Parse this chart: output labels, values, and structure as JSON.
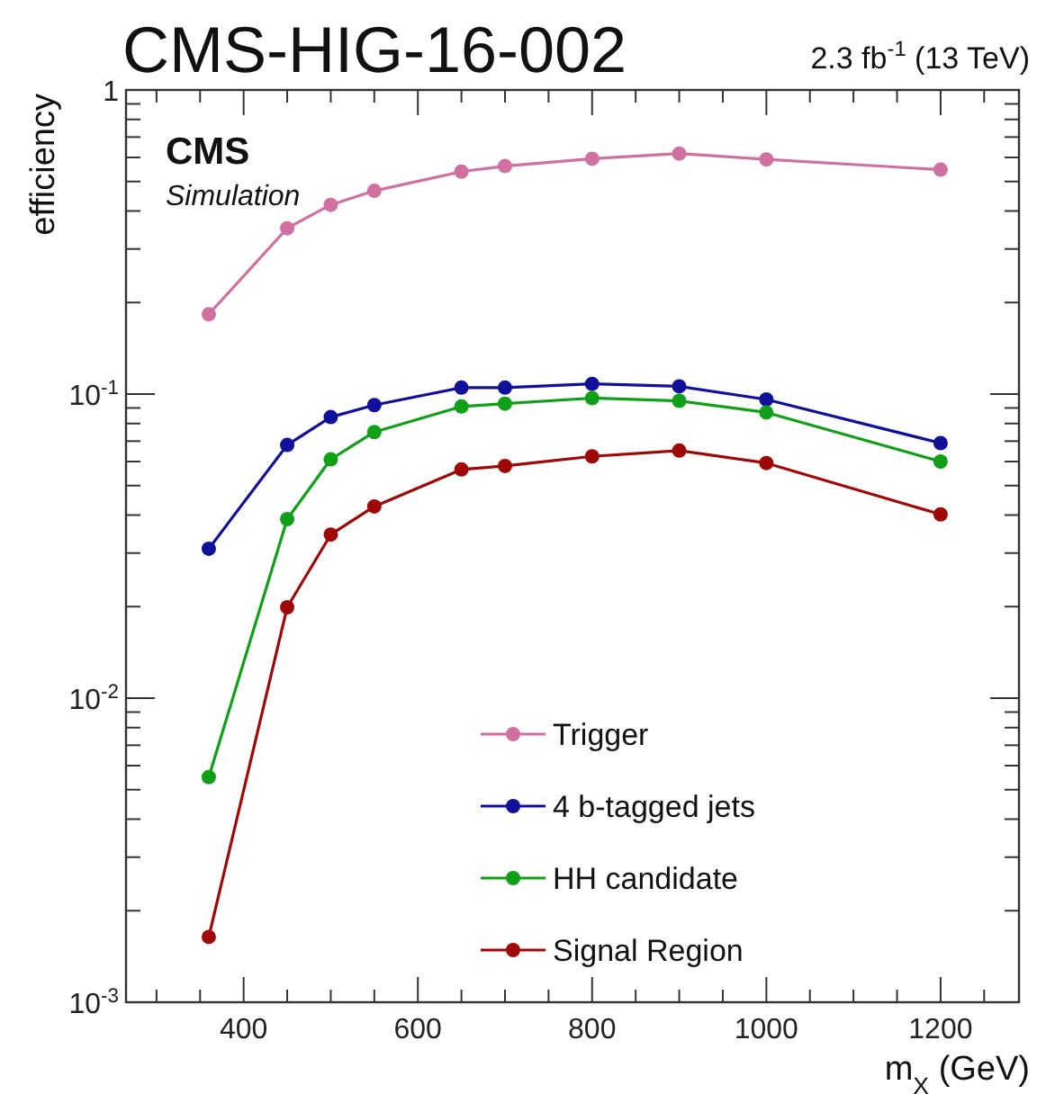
{
  "chart_data": {
    "type": "line",
    "title": "CMS-HIG-16-002",
    "subtitle": "2.3 fb$^{-1}$ (13 TeV)",
    "xlabel": "m$_{X}$ (GeV)",
    "ylabel": "efficiency",
    "annotations": [
      "CMS",
      "Simulation"
    ],
    "x": [
      360,
      450,
      500,
      550,
      650,
      700,
      800,
      900,
      1000,
      1200
    ],
    "series": [
      {
        "name": "Trigger",
        "color": "#d070a0",
        "values": [
          0.183,
          0.351,
          0.419,
          0.466,
          0.539,
          0.562,
          0.594,
          0.618,
          0.591,
          0.547
        ]
      },
      {
        "name": "4 b-tagged jets",
        "color": "#10109a",
        "values": [
          0.031,
          0.068,
          0.084,
          0.092,
          0.105,
          0.105,
          0.108,
          0.106,
          0.096,
          0.069
        ]
      },
      {
        "name": "HH candidate",
        "color": "#10a018",
        "values": [
          0.0055,
          0.0388,
          0.061,
          0.075,
          0.091,
          0.093,
          0.097,
          0.095,
          0.087,
          0.06
        ]
      },
      {
        "name": "Signal Region",
        "color": "#a00808",
        "values": [
          0.00164,
          0.0199,
          0.0345,
          0.0427,
          0.0565,
          0.058,
          0.0624,
          0.0652,
          0.0593,
          0.0402
        ]
      }
    ],
    "xlim": [
      265,
      1290
    ],
    "xticks": [
      {
        "value": 300,
        "label": null
      },
      {
        "value": 350,
        "label": null
      },
      400,
      {
        "value": 450,
        "label": null
      },
      {
        "value": 500,
        "label": null
      },
      {
        "value": 550,
        "label": null
      },
      600,
      {
        "value": 650,
        "label": null
      },
      {
        "value": 700,
        "label": null
      },
      {
        "value": 750,
        "label": null
      },
      800,
      {
        "value": 850,
        "label": null
      },
      {
        "value": 900,
        "label": null
      },
      {
        "value": 950,
        "label": null
      },
      1000,
      {
        "value": 1050,
        "label": null
      },
      {
        "value": 1100,
        "label": null
      },
      {
        "value": 1150,
        "label": null
      },
      1200,
      {
        "value": 1250,
        "label": null
      }
    ],
    "ylim": [
      0.001,
      1
    ],
    "yticks": [
      {
        "value": 0.001,
        "label": "10$^{-3}$"
      },
      {
        "value": 0.002,
        "label": null
      },
      {
        "value": 0.003,
        "label": null
      },
      {
        "value": 0.004,
        "label": null
      },
      {
        "value": 0.005,
        "label": null
      },
      {
        "value": 0.006,
        "label": null
      },
      {
        "value": 0.007,
        "label": null
      },
      {
        "value": 0.008,
        "label": null
      },
      {
        "value": 0.009,
        "label": null
      },
      {
        "value": 0.01,
        "label": "10$^{-2}$"
      },
      {
        "value": 0.02,
        "label": null
      },
      {
        "value": 0.03,
        "label": null
      },
      {
        "value": 0.04,
        "label": null
      },
      {
        "value": 0.05,
        "label": null
      },
      {
        "value": 0.06,
        "label": null
      },
      {
        "value": 0.07,
        "label": null
      },
      {
        "value": 0.08,
        "label": null
      },
      {
        "value": 0.09,
        "label": null
      },
      {
        "value": 0.1,
        "label": "10$^{-1}$"
      },
      {
        "value": 0.2,
        "label": null
      },
      {
        "value": 0.3,
        "label": null
      },
      {
        "value": 0.4,
        "label": null
      },
      {
        "value": 0.5,
        "label": null
      },
      {
        "value": 0.6,
        "label": null
      },
      {
        "value": 0.7,
        "label": null
      },
      {
        "value": 0.8,
        "label": null
      },
      {
        "value": 0.9,
        "label": null
      },
      1
    ],
    "log": true,
    "grid": false,
    "legend": "bottom",
    "marker": "circle",
    "line_style": "solid"
  }
}
